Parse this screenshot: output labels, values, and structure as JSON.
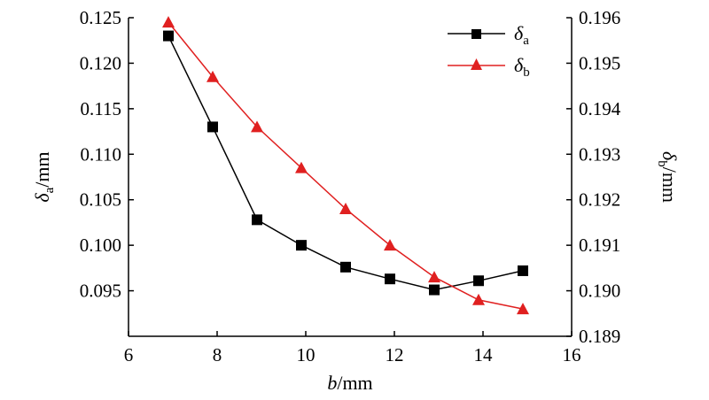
{
  "chart_data": {
    "type": "line",
    "xlabel": "b/mm",
    "ylabel_left": "δa/mm",
    "ylabel_right": "δb/mm",
    "xlim": [
      6,
      16
    ],
    "xticks": [
      "6",
      "8",
      "10",
      "12",
      "14",
      "16"
    ],
    "ylim_left": [
      0.09,
      0.125
    ],
    "yticks_left": [
      "0.095",
      "0.100",
      "0.105",
      "0.110",
      "0.115",
      "0.120",
      "0.125"
    ],
    "ylim_right": [
      0.189,
      0.196
    ],
    "yticks_right": [
      "0.189",
      "0.190",
      "0.191",
      "0.192",
      "0.193",
      "0.194",
      "0.195",
      "0.196"
    ],
    "grid": false,
    "legend_position": "top-right",
    "x": [
      6.9,
      7.9,
      8.9,
      9.9,
      10.9,
      11.9,
      12.9,
      13.9,
      14.9
    ],
    "series": [
      {
        "name": "δa",
        "name_main": "δ",
        "name_sub": "a",
        "axis": "left",
        "marker": "square",
        "color": "#000000",
        "values": [
          0.123,
          0.113,
          0.1028,
          0.1,
          0.0976,
          0.0963,
          0.0951,
          0.0961,
          0.0972
        ]
      },
      {
        "name": "δb",
        "name_main": "δ",
        "name_sub": "b",
        "axis": "right",
        "marker": "triangle",
        "color": "#e02020",
        "values": [
          0.1959,
          0.1947,
          0.1936,
          0.1927,
          0.1918,
          0.191,
          0.1903,
          0.1898,
          0.1896
        ]
      }
    ]
  }
}
